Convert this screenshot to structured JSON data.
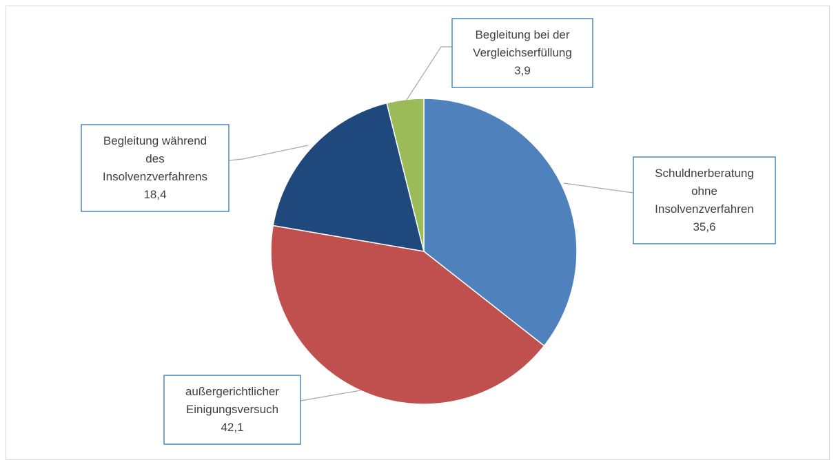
{
  "chart_data": {
    "type": "pie",
    "title": "",
    "start_angle_deg": 0,
    "direction": "clockwise",
    "slices": [
      {
        "label": [
          "Schuldnerberatung",
          "ohne",
          "Insolvenzverfahren"
        ],
        "value_label": "35,6",
        "value": 35.6,
        "color": "#4f81bd"
      },
      {
        "label": [
          "außergerichtlicher",
          "Einigungsversuch"
        ],
        "value_label": "42,1",
        "value": 42.1,
        "color": "#c0504d"
      },
      {
        "label": [
          "Begleitung während",
          "des",
          "Insolvenzverfahrens"
        ],
        "value_label": "18,4",
        "value": 18.4,
        "color": "#1f497d"
      },
      {
        "label": [
          "Begleitung bei der",
          "Vergleichserfüllung"
        ],
        "value_label": "3,9",
        "value": 3.9,
        "color": "#9bbb59"
      }
    ],
    "legend": "none"
  }
}
